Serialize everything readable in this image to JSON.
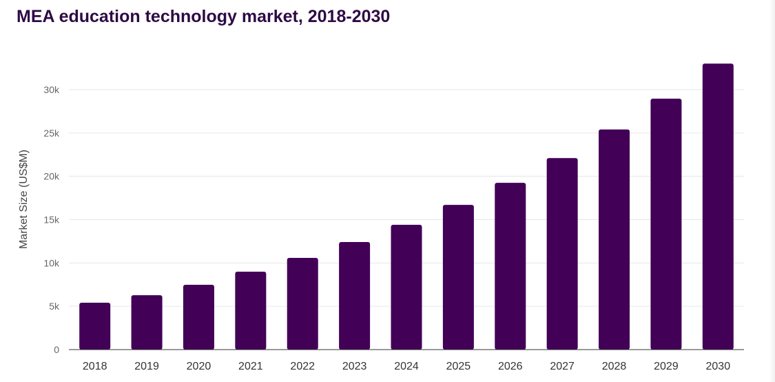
{
  "chart_data": {
    "type": "bar",
    "title": "MEA education technology market, 2018-2030",
    "xlabel": "",
    "ylabel": "Market Size (US$M)",
    "categories": [
      "2018",
      "2019",
      "2020",
      "2021",
      "2022",
      "2023",
      "2024",
      "2025",
      "2026",
      "2027",
      "2028",
      "2029",
      "2030"
    ],
    "values": [
      5410,
      6280,
      7480,
      8990,
      10580,
      12410,
      14400,
      16700,
      19250,
      22100,
      25400,
      28960,
      33000
    ],
    "ylim": [
      0,
      33000
    ],
    "yticks": [
      0,
      5000,
      10000,
      15000,
      20000,
      25000,
      30000
    ],
    "ytick_labels": [
      "0",
      "5k",
      "10k",
      "15k",
      "20k",
      "25k",
      "30k"
    ],
    "grid": true,
    "bar_color": "#420057"
  }
}
